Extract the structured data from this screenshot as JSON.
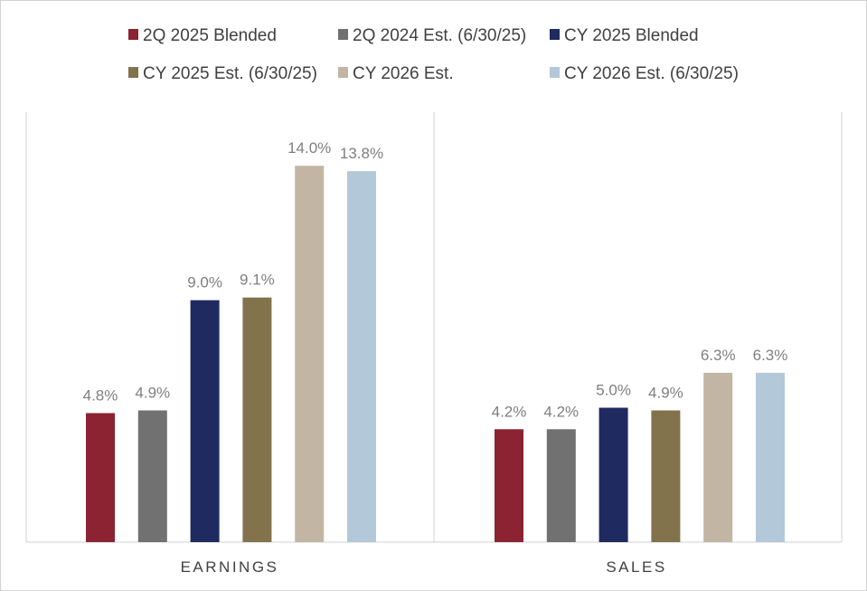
{
  "chart_data": {
    "type": "bar",
    "categories": [
      "EARNINGS",
      "SALES"
    ],
    "ylim": [
      0,
      16
    ],
    "grid": false,
    "legend_position": "top",
    "series": [
      {
        "name": "2Q 2025 Blended",
        "color": "#8b2332",
        "values": [
          4.8,
          4.2
        ],
        "labels": [
          "4.8%",
          "4.2%"
        ]
      },
      {
        "name": "2Q 2024 Est. (6/30/25)",
        "color": "#717171",
        "values": [
          4.9,
          4.2
        ],
        "labels": [
          "4.9%",
          "4.2%"
        ]
      },
      {
        "name": "CY 2025 Blended",
        "color": "#1f2a61",
        "values": [
          9.0,
          5.0
        ],
        "labels": [
          "9.0%",
          "5.0%"
        ]
      },
      {
        "name": "CY 2025 Est. (6/30/25)",
        "color": "#82734d",
        "values": [
          9.1,
          4.9
        ],
        "labels": [
          "9.1%",
          "4.9%"
        ]
      },
      {
        "name": "CY 2026 Est.",
        "color": "#c2b5a3",
        "values": [
          14.0,
          6.3
        ],
        "labels": [
          "14.0%",
          "6.3%"
        ]
      },
      {
        "name": "CY 2026 Est. (6/30/25)",
        "color": "#b3c8d8",
        "values": [
          13.8,
          6.3
        ],
        "labels": [
          "13.8%",
          "6.3%"
        ]
      }
    ]
  }
}
